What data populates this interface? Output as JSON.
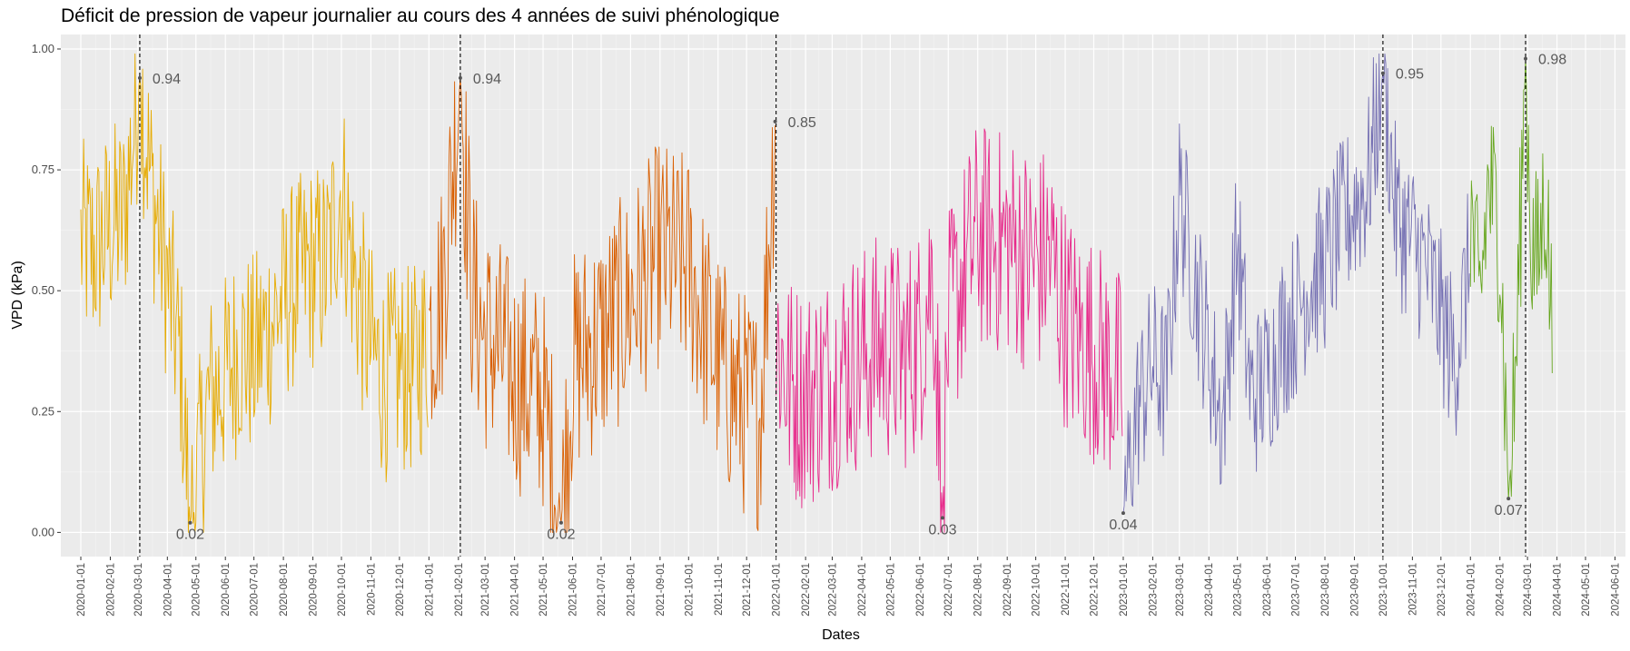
{
  "chart_data": {
    "type": "line",
    "title": "Déficit de pression de vapeur journalier au cours des 4 années de suivi phénologique",
    "xlabel": "Dates",
    "ylabel": "VPD (kPa)",
    "ylim": [
      -0.05,
      1.03
    ],
    "xlim": [
      "2019-12-11",
      "2024-06-12"
    ],
    "y_ticks": [
      "0.00",
      "0.25",
      "0.50",
      "0.75",
      "1.00"
    ],
    "x_ticks": [
      "2020-01-01",
      "2020-02-01",
      "2020-03-01",
      "2020-04-01",
      "2020-05-01",
      "2020-06-01",
      "2020-07-01",
      "2020-08-01",
      "2020-09-01",
      "2020-10-01",
      "2020-11-01",
      "2020-12-01",
      "2021-01-01",
      "2021-02-01",
      "2021-03-01",
      "2021-04-01",
      "2021-05-01",
      "2021-06-01",
      "2021-07-01",
      "2021-08-01",
      "2021-09-01",
      "2021-10-01",
      "2021-11-01",
      "2021-12-01",
      "2022-01-01",
      "2022-02-01",
      "2022-03-01",
      "2022-04-01",
      "2022-05-01",
      "2022-06-01",
      "2022-07-01",
      "2022-08-01",
      "2022-09-01",
      "2022-10-01",
      "2022-11-01",
      "2022-12-01",
      "2023-01-01",
      "2023-02-01",
      "2023-03-01",
      "2023-04-01",
      "2023-05-01",
      "2023-06-01",
      "2023-07-01",
      "2023-08-01",
      "2023-09-01",
      "2023-10-01",
      "2023-11-01",
      "2023-12-01",
      "2024-01-01",
      "2024-02-01",
      "2024-03-01",
      "2024-04-01",
      "2024-05-01",
      "2024-06-01"
    ],
    "grid": true,
    "background": "#EBEBEB",
    "series": [
      {
        "color": "#E6AB02",
        "x": [
          "2020-01-01",
          "2020-01-15",
          "2020-02-01",
          "2020-02-15",
          "2020-03-03",
          "2020-03-15",
          "2020-04-01",
          "2020-04-15",
          "2020-04-25",
          "2020-05-15",
          "2020-06-01",
          "2020-06-15",
          "2020-07-01",
          "2020-07-15",
          "2020-08-01",
          "2020-08-15",
          "2020-09-01",
          "2020-09-15",
          "2020-10-01",
          "2020-10-15",
          "2020-11-01",
          "2020-11-15",
          "2020-12-01",
          "2020-12-15",
          "2020-12-31"
        ],
        "y": [
          0.6,
          0.58,
          0.63,
          0.65,
          0.94,
          0.72,
          0.52,
          0.35,
          0.02,
          0.28,
          0.32,
          0.38,
          0.36,
          0.42,
          0.48,
          0.52,
          0.55,
          0.55,
          0.72,
          0.52,
          0.38,
          0.32,
          0.34,
          0.33,
          0.4
        ],
        "amp": 0.22,
        "step": 1
      },
      {
        "color": "#D95F02",
        "x": [
          "2021-01-01",
          "2021-01-15",
          "2021-02-03",
          "2021-02-15",
          "2021-03-01",
          "2021-03-15",
          "2021-04-01",
          "2021-04-15",
          "2021-05-01",
          "2021-05-20",
          "2021-06-01",
          "2021-06-15",
          "2021-07-01",
          "2021-07-15",
          "2021-08-01",
          "2021-08-15",
          "2021-09-01",
          "2021-09-15",
          "2021-10-01",
          "2021-10-15",
          "2021-11-01",
          "2021-11-15",
          "2021-12-01",
          "2021-12-15",
          "2021-12-31"
        ],
        "y": [
          0.42,
          0.5,
          0.94,
          0.5,
          0.4,
          0.38,
          0.32,
          0.3,
          0.28,
          0.02,
          0.34,
          0.38,
          0.4,
          0.44,
          0.48,
          0.52,
          0.58,
          0.56,
          0.55,
          0.45,
          0.35,
          0.3,
          0.26,
          0.24,
          0.85
        ],
        "amp": 0.24,
        "step": 1
      },
      {
        "color": "#E7298A",
        "x": [
          "2022-01-01",
          "2022-01-15",
          "2022-02-01",
          "2022-02-15",
          "2022-03-01",
          "2022-03-15",
          "2022-04-01",
          "2022-04-15",
          "2022-05-01",
          "2022-05-15",
          "2022-06-01",
          "2022-06-15",
          "2022-06-25",
          "2022-07-01",
          "2022-07-15",
          "2022-08-01",
          "2022-08-15",
          "2022-09-01",
          "2022-09-15",
          "2022-10-01",
          "2022-10-15",
          "2022-11-01",
          "2022-11-15",
          "2022-12-01",
          "2022-12-31"
        ],
        "y": [
          0.4,
          0.3,
          0.28,
          0.3,
          0.32,
          0.35,
          0.36,
          0.38,
          0.38,
          0.36,
          0.4,
          0.55,
          0.03,
          0.42,
          0.52,
          0.62,
          0.6,
          0.6,
          0.58,
          0.55,
          0.58,
          0.45,
          0.4,
          0.38,
          0.3
        ],
        "amp": 0.24,
        "step": 1
      },
      {
        "color": "#7570B3",
        "x": [
          "2023-01-01",
          "2023-01-15",
          "2023-02-01",
          "2023-02-15",
          "2023-03-01",
          "2023-04-15",
          "2023-05-01",
          "2023-05-15",
          "2023-06-01",
          "2023-06-15",
          "2023-07-01",
          "2023-07-15",
          "2023-08-01",
          "2023-08-15",
          "2023-09-01",
          "2023-09-15",
          "2023-10-01",
          "2023-10-15",
          "2023-11-01",
          "2023-11-15",
          "2023-12-01",
          "2023-12-15",
          "2023-12-31"
        ],
        "y": [
          0.04,
          0.25,
          0.35,
          0.3,
          0.7,
          0.22,
          0.6,
          0.28,
          0.32,
          0.4,
          0.45,
          0.52,
          0.55,
          0.62,
          0.68,
          0.72,
          0.95,
          0.65,
          0.6,
          0.55,
          0.45,
          0.35,
          0.55
        ],
        "amp": 0.18,
        "step": 1
      },
      {
        "color": "#66A61E",
        "x": [
          "2024-01-01",
          "2024-01-10",
          "2024-01-20",
          "2024-02-01",
          "2024-02-10",
          "2024-02-18",
          "2024-02-28",
          "2024-03-05",
          "2024-03-12",
          "2024-03-20",
          "2024-03-27"
        ],
        "y": [
          0.68,
          0.45,
          0.72,
          0.62,
          0.07,
          0.35,
          0.98,
          0.6,
          0.55,
          0.72,
          0.4
        ],
        "amp": 0.2,
        "step": 1
      }
    ],
    "annotations": [
      {
        "x": "2020-03-03",
        "y": 0.94,
        "label": "0.94"
      },
      {
        "x": "2020-04-25",
        "y": 0.02,
        "label": "0.02"
      },
      {
        "x": "2021-02-03",
        "y": 0.94,
        "label": "0.94"
      },
      {
        "x": "2021-05-20",
        "y": 0.02,
        "label": "0.02"
      },
      {
        "x": "2021-12-31",
        "y": 0.85,
        "label": "0.85"
      },
      {
        "x": "2022-06-25",
        "y": 0.03,
        "label": "0.03"
      },
      {
        "x": "2023-01-01",
        "y": 0.04,
        "label": "0.04"
      },
      {
        "x": "2023-10-01",
        "y": 0.95,
        "label": "0.95"
      },
      {
        "x": "2024-02-10",
        "y": 0.07,
        "label": "0.07"
      },
      {
        "x": "2024-02-28",
        "y": 0.98,
        "label": "0.98"
      }
    ],
    "vlines": [
      "2020-03-03",
      "2021-02-03",
      "2022-01-01",
      "2023-10-01",
      "2024-02-28"
    ]
  }
}
